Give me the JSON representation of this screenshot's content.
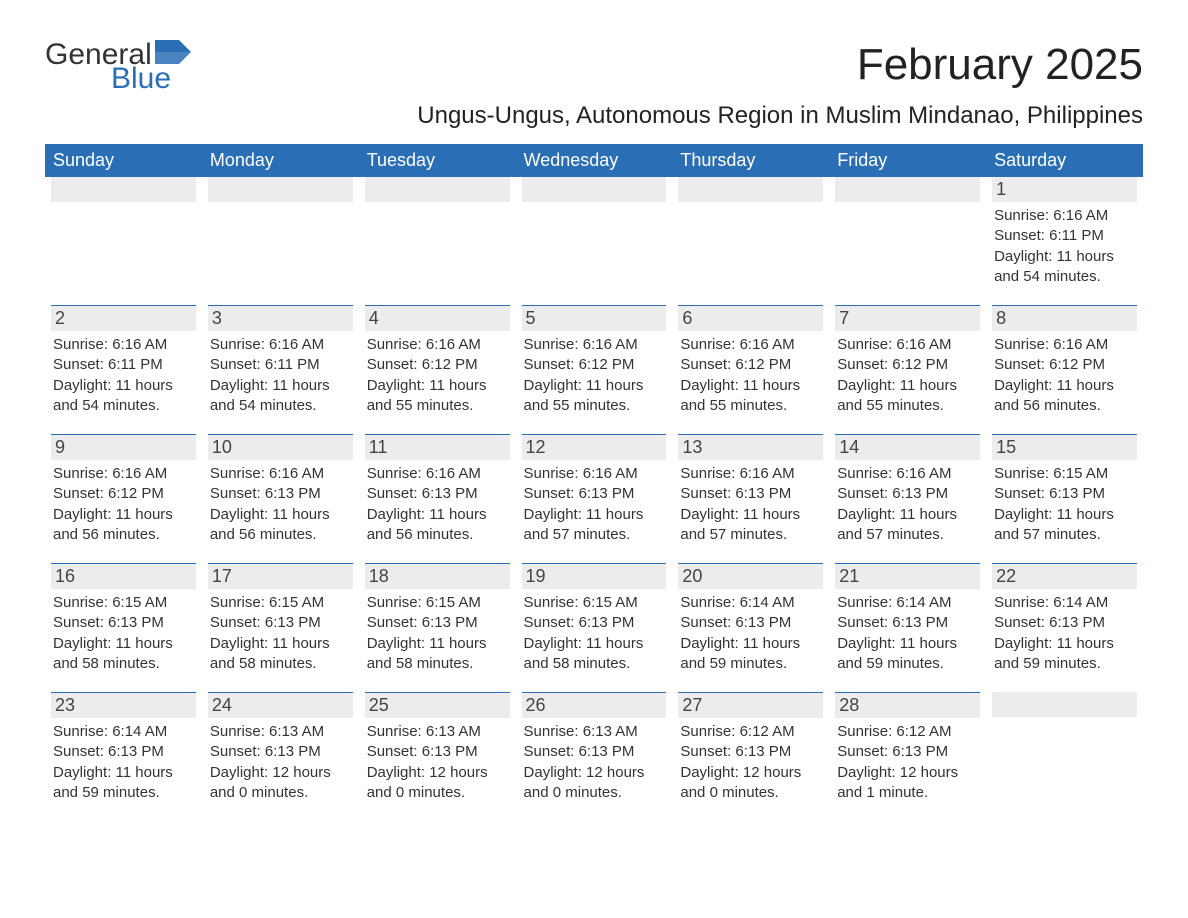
{
  "logo": {
    "text1": "General",
    "text2": "Blue"
  },
  "title": "February 2025",
  "location": "Ungus-Ungus, Autonomous Region in Muslim Mindanao, Philippines",
  "header_bg": "#2a6fb5",
  "header_fg": "#ffffff",
  "daybar_bg": "#ececec",
  "daybar_border": "#2a6fb5",
  "text_color": "#333333",
  "weekday_labels": [
    "Sunday",
    "Monday",
    "Tuesday",
    "Wednesday",
    "Thursday",
    "Friday",
    "Saturday"
  ],
  "weeks": [
    [
      null,
      null,
      null,
      null,
      null,
      null,
      {
        "n": "1",
        "sr": "6:16 AM",
        "ss": "6:11 PM",
        "dl": "11 hours and 54 minutes."
      }
    ],
    [
      {
        "n": "2",
        "sr": "6:16 AM",
        "ss": "6:11 PM",
        "dl": "11 hours and 54 minutes."
      },
      {
        "n": "3",
        "sr": "6:16 AM",
        "ss": "6:11 PM",
        "dl": "11 hours and 54 minutes."
      },
      {
        "n": "4",
        "sr": "6:16 AM",
        "ss": "6:12 PM",
        "dl": "11 hours and 55 minutes."
      },
      {
        "n": "5",
        "sr": "6:16 AM",
        "ss": "6:12 PM",
        "dl": "11 hours and 55 minutes."
      },
      {
        "n": "6",
        "sr": "6:16 AM",
        "ss": "6:12 PM",
        "dl": "11 hours and 55 minutes."
      },
      {
        "n": "7",
        "sr": "6:16 AM",
        "ss": "6:12 PM",
        "dl": "11 hours and 55 minutes."
      },
      {
        "n": "8",
        "sr": "6:16 AM",
        "ss": "6:12 PM",
        "dl": "11 hours and 56 minutes."
      }
    ],
    [
      {
        "n": "9",
        "sr": "6:16 AM",
        "ss": "6:12 PM",
        "dl": "11 hours and 56 minutes."
      },
      {
        "n": "10",
        "sr": "6:16 AM",
        "ss": "6:13 PM",
        "dl": "11 hours and 56 minutes."
      },
      {
        "n": "11",
        "sr": "6:16 AM",
        "ss": "6:13 PM",
        "dl": "11 hours and 56 minutes."
      },
      {
        "n": "12",
        "sr": "6:16 AM",
        "ss": "6:13 PM",
        "dl": "11 hours and 57 minutes."
      },
      {
        "n": "13",
        "sr": "6:16 AM",
        "ss": "6:13 PM",
        "dl": "11 hours and 57 minutes."
      },
      {
        "n": "14",
        "sr": "6:16 AM",
        "ss": "6:13 PM",
        "dl": "11 hours and 57 minutes."
      },
      {
        "n": "15",
        "sr": "6:15 AM",
        "ss": "6:13 PM",
        "dl": "11 hours and 57 minutes."
      }
    ],
    [
      {
        "n": "16",
        "sr": "6:15 AM",
        "ss": "6:13 PM",
        "dl": "11 hours and 58 minutes."
      },
      {
        "n": "17",
        "sr": "6:15 AM",
        "ss": "6:13 PM",
        "dl": "11 hours and 58 minutes."
      },
      {
        "n": "18",
        "sr": "6:15 AM",
        "ss": "6:13 PM",
        "dl": "11 hours and 58 minutes."
      },
      {
        "n": "19",
        "sr": "6:15 AM",
        "ss": "6:13 PM",
        "dl": "11 hours and 58 minutes."
      },
      {
        "n": "20",
        "sr": "6:14 AM",
        "ss": "6:13 PM",
        "dl": "11 hours and 59 minutes."
      },
      {
        "n": "21",
        "sr": "6:14 AM",
        "ss": "6:13 PM",
        "dl": "11 hours and 59 minutes."
      },
      {
        "n": "22",
        "sr": "6:14 AM",
        "ss": "6:13 PM",
        "dl": "11 hours and 59 minutes."
      }
    ],
    [
      {
        "n": "23",
        "sr": "6:14 AM",
        "ss": "6:13 PM",
        "dl": "11 hours and 59 minutes."
      },
      {
        "n": "24",
        "sr": "6:13 AM",
        "ss": "6:13 PM",
        "dl": "12 hours and 0 minutes."
      },
      {
        "n": "25",
        "sr": "6:13 AM",
        "ss": "6:13 PM",
        "dl": "12 hours and 0 minutes."
      },
      {
        "n": "26",
        "sr": "6:13 AM",
        "ss": "6:13 PM",
        "dl": "12 hours and 0 minutes."
      },
      {
        "n": "27",
        "sr": "6:12 AM",
        "ss": "6:13 PM",
        "dl": "12 hours and 0 minutes."
      },
      {
        "n": "28",
        "sr": "6:12 AM",
        "ss": "6:13 PM",
        "dl": "12 hours and 1 minute."
      },
      null
    ]
  ],
  "labels": {
    "sunrise": "Sunrise: ",
    "sunset": "Sunset: ",
    "daylight": "Daylight: "
  }
}
